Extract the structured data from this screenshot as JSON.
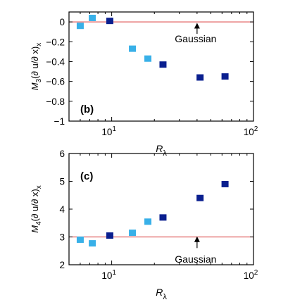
{
  "chart_data": [
    {
      "type": "scatter",
      "panel_label": "(b)",
      "xlabel": "R",
      "xlabel_sub": "λ",
      "ylabel": "M",
      "ylabel_sub": "3",
      "ylabel_arg": "(∂ u/∂ x)",
      "ylabel_arg_sub": "x",
      "xscale": "log",
      "xlim": [
        5,
        100
      ],
      "ylim": [
        -1,
        0.1
      ],
      "x_ticks": [
        10,
        100
      ],
      "x_tick_labels": [
        {
          "base": "10",
          "exp": "1"
        },
        {
          "base": "10",
          "exp": "2"
        }
      ],
      "y_ticks": [
        0,
        -0.2,
        -0.4,
        -0.6,
        -0.8,
        -1
      ],
      "y_tick_labels": [
        "0",
        "−0.2",
        "−0.4",
        "−0.6",
        "−0.8",
        "−1"
      ],
      "reference_line": {
        "y": 0,
        "color": "#e06060"
      },
      "annotation": {
        "text": "Gaussian",
        "arrow_x": 40,
        "arrow_from_y": -0.12,
        "arrow_to_y": -0.01,
        "text_y": -0.17
      },
      "series": [
        {
          "color": "#38b0e8",
          "x": [
            6.0,
            7.3,
            14.0,
            18.0
          ],
          "y": [
            -0.04,
            0.04,
            -0.27,
            -0.37
          ]
        },
        {
          "color": "#0a1f8f",
          "x": [
            9.7,
            23.0,
            42.0,
            63.0
          ],
          "y": [
            0.01,
            -0.43,
            -0.56,
            -0.55
          ]
        }
      ]
    },
    {
      "type": "scatter",
      "panel_label": "(c)",
      "xlabel": "R",
      "xlabel_sub": "λ",
      "ylabel": "M",
      "ylabel_sub": "4",
      "ylabel_arg": "(∂ u/∂ x)",
      "ylabel_arg_sub": "x",
      "xscale": "log",
      "xlim": [
        5,
        100
      ],
      "ylim": [
        2,
        6
      ],
      "x_ticks": [
        10,
        100
      ],
      "x_tick_labels": [
        {
          "base": "10",
          "exp": "1"
        },
        {
          "base": "10",
          "exp": "2"
        }
      ],
      "y_ticks": [
        2,
        3,
        4,
        5,
        6
      ],
      "y_tick_labels": [
        "2",
        "3",
        "4",
        "5",
        "6"
      ],
      "reference_line": {
        "y": 3,
        "color": "#e06060"
      },
      "annotation": {
        "text": "Gaussian",
        "arrow_x": 40,
        "arrow_from_y": 2.6,
        "arrow_to_y": 3.02,
        "text_y": 2.2
      },
      "series": [
        {
          "color": "#38b0e8",
          "x": [
            6.0,
            7.3,
            14.0,
            18.0
          ],
          "y": [
            2.9,
            2.77,
            3.15,
            3.55
          ]
        },
        {
          "color": "#0a1f8f",
          "x": [
            9.7,
            23.0,
            42.0,
            63.0
          ],
          "y": [
            3.05,
            3.7,
            4.4,
            4.9
          ]
        }
      ]
    }
  ]
}
